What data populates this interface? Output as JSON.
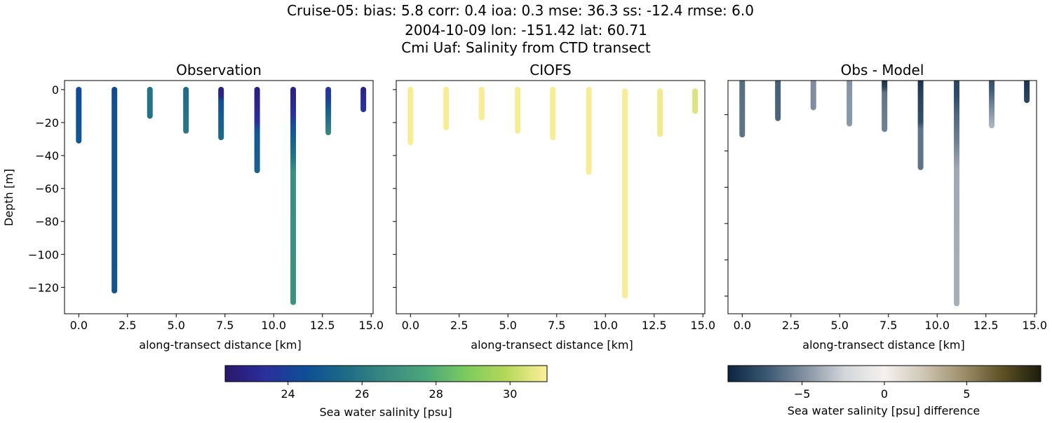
{
  "figure": {
    "title_lines": [
      "Cruise-05: bias: 5.8  corr: 0.4  ioa: 0.3  mse: 36.3  ss: -12.4  rmse: 6.0",
      "2004-10-09 lon: -151.42 lat: 60.71",
      "Cmi Uaf: Salinity from CTD transect"
    ]
  },
  "chart_data": [
    {
      "type": "scatter",
      "title": "Observation",
      "xlabel": "along-transect distance [km]",
      "ylabel": "Depth [m]",
      "xlim": [
        -0.73,
        15.1
      ],
      "ylim": [
        5.5,
        -136
      ],
      "xticks": [
        0,
        2.5,
        5,
        7.5,
        10,
        12.5,
        15
      ],
      "xtick_labels": [
        "0.0",
        "2.5",
        "5.0",
        "7.5",
        "10.0",
        "12.5",
        "15.0"
      ],
      "yticks": [
        0,
        -20,
        -40,
        -60,
        -80,
        -100,
        -120
      ],
      "ytick_labels": [
        "0",
        "−20",
        "−40",
        "−60",
        "−80",
        "−100",
        "−120"
      ],
      "colormap": "haline",
      "clim": [
        22.3,
        31.0
      ],
      "profiles": [
        {
          "x": 0.0,
          "points": [
            [
              0,
              24.3
            ],
            [
              10,
              24.5
            ],
            [
              31,
              24.8
            ]
          ]
        },
        {
          "x": 1.83,
          "points": [
            [
              0,
              24.2
            ],
            [
              10,
              24.6
            ],
            [
              122,
              24.7
            ]
          ]
        },
        {
          "x": 3.65,
          "points": [
            [
              0,
              25.8
            ],
            [
              16,
              25.8
            ]
          ]
        },
        {
          "x": 5.5,
          "points": [
            [
              0,
              25.6
            ],
            [
              25,
              26.0
            ]
          ]
        },
        {
          "x": 7.3,
          "points": [
            [
              0,
              22.8
            ],
            [
              4,
              22.9
            ],
            [
              7,
              24.5
            ],
            [
              29,
              25.5
            ]
          ]
        },
        {
          "x": 9.15,
          "points": [
            [
              0,
              22.7
            ],
            [
              8,
              22.9
            ],
            [
              20,
              23.4
            ],
            [
              25,
              24.8
            ],
            [
              49,
              25.2
            ]
          ]
        },
        {
          "x": 11.0,
          "points": [
            [
              0,
              22.8
            ],
            [
              5,
              22.9
            ],
            [
              15,
              23.5
            ],
            [
              25,
              24.8
            ],
            [
              40,
              25.8
            ],
            [
              50,
              26.8
            ],
            [
              129,
              26.9
            ]
          ]
        },
        {
          "x": 12.8,
          "points": [
            [
              0,
              23.6
            ],
            [
              5,
              23.8
            ],
            [
              12,
              25.0
            ],
            [
              26,
              26.5
            ]
          ]
        },
        {
          "x": 14.6,
          "points": [
            [
              0,
              22.8
            ],
            [
              5,
              23.2
            ],
            [
              12,
              23.5
            ]
          ]
        }
      ]
    },
    {
      "type": "scatter",
      "title": "CIOFS",
      "xlabel": "along-transect distance [km]",
      "xlim": [
        -0.73,
        15.1
      ],
      "ylim": [
        5.5,
        -136
      ],
      "xticks": [
        0,
        2.5,
        5,
        7.5,
        10,
        12.5,
        15
      ],
      "xtick_labels": [
        "0.0",
        "2.5",
        "5.0",
        "7.5",
        "10.0",
        "12.5",
        "15.0"
      ],
      "yticks": [
        0,
        -20,
        -40,
        -60,
        -80,
        -100,
        -120
      ],
      "colormap": "haline",
      "clim": [
        22.3,
        31.0
      ],
      "profiles": [
        {
          "x": 0.0,
          "points": [
            [
              0,
              30.9
            ],
            [
              32,
              30.9
            ]
          ]
        },
        {
          "x": 1.83,
          "points": [
            [
              0,
              30.9
            ],
            [
              23,
              30.9
            ]
          ]
        },
        {
          "x": 3.65,
          "points": [
            [
              0,
              30.9
            ],
            [
              17,
              30.9
            ]
          ]
        },
        {
          "x": 5.5,
          "points": [
            [
              0,
              30.9
            ],
            [
              25,
              30.9
            ]
          ]
        },
        {
          "x": 7.3,
          "points": [
            [
              0,
              30.9
            ],
            [
              29,
              30.9
            ]
          ]
        },
        {
          "x": 9.15,
          "points": [
            [
              0,
              30.9
            ],
            [
              50,
              30.9
            ]
          ]
        },
        {
          "x": 11.0,
          "points": [
            [
              1,
              30.9
            ],
            [
              125,
              30.9
            ]
          ]
        },
        {
          "x": 12.8,
          "points": [
            [
              1,
              30.8
            ],
            [
              27,
              30.8
            ]
          ]
        },
        {
          "x": 14.6,
          "points": [
            [
              1,
              30.5
            ],
            [
              13,
              30.5
            ]
          ]
        }
      ]
    },
    {
      "type": "scatter",
      "title": "Obs - Model",
      "xlabel": "along-transect distance [km]",
      "xlim": [
        -0.73,
        15.1
      ],
      "ylim": [
        -1.2,
        -129.7
      ],
      "xticks": [
        0,
        2.5,
        5,
        7.5,
        10,
        12.5,
        15
      ],
      "xtick_labels": [
        "0.0",
        "2.5",
        "5.0",
        "7.5",
        "10.0",
        "12.5",
        "15.0"
      ],
      "yticks": [
        -20,
        -40,
        -60,
        -80,
        -100,
        -120
      ],
      "colormap": "diff",
      "clim": [
        -9.5,
        9.5
      ],
      "profiles": [
        {
          "x": 0.0,
          "points": [
            [
              0,
              -6.3
            ],
            [
              31,
              -6.0
            ]
          ]
        },
        {
          "x": 1.83,
          "points": [
            [
              0,
              -6.8
            ],
            [
              22,
              -6.6
            ]
          ]
        },
        {
          "x": 3.65,
          "points": [
            [
              0,
              -5.0
            ],
            [
              16,
              -5.0
            ]
          ]
        },
        {
          "x": 5.5,
          "points": [
            [
              0,
              -4.8
            ],
            [
              25,
              -4.6
            ]
          ]
        },
        {
          "x": 7.3,
          "points": [
            [
              0,
              -9.2
            ],
            [
              5,
              -8.0
            ],
            [
              8,
              -6.0
            ],
            [
              28,
              -5.5
            ]
          ]
        },
        {
          "x": 9.15,
          "points": [
            [
              0,
              -9.0
            ],
            [
              8,
              -8.2
            ],
            [
              24,
              -7.6
            ],
            [
              28,
              -6.0
            ],
            [
              49,
              -6.0
            ]
          ]
        },
        {
          "x": 11.0,
          "points": [
            [
              0,
              -8.0
            ],
            [
              10,
              -7.6
            ],
            [
              20,
              -6.5
            ],
            [
              35,
              -5.5
            ],
            [
              50,
              -4.0
            ],
            [
              124,
              -3.8
            ]
          ]
        },
        {
          "x": 12.8,
          "points": [
            [
              0,
              -7.5
            ],
            [
              6,
              -7.0
            ],
            [
              14,
              -5.5
            ],
            [
              26,
              -3.6
            ]
          ]
        },
        {
          "x": 14.6,
          "points": [
            [
              0,
              -8.8
            ],
            [
              12,
              -8.0
            ]
          ]
        }
      ]
    }
  ],
  "colorbars": [
    {
      "label": "Sea water salinity [psu]",
      "colormap": "haline",
      "range": [
        22.3,
        31.0
      ],
      "ticks": [
        24,
        26,
        28,
        30
      ],
      "tick_labels": [
        "24",
        "26",
        "28",
        "30"
      ]
    },
    {
      "label": "Sea water salinity [psu] difference",
      "colormap": "diff",
      "range": [
        -9.5,
        9.5
      ],
      "ticks": [
        -5,
        0,
        5
      ],
      "tick_labels": [
        "−5",
        "0",
        "5"
      ]
    }
  ],
  "colormaps": {
    "haline": [
      "#2a186c",
      "#2b2f9c",
      "#0e4f96",
      "#1d6b87",
      "#3a8a80",
      "#4aa77a",
      "#7ccb5e",
      "#b6d85a",
      "#fdef9a"
    ],
    "diff": [
      "#0b2442",
      "#3b5872",
      "#8694a3",
      "#d4d7db",
      "#f4f1ef",
      "#cfc6b4",
      "#9d8f6c",
      "#5e5226",
      "#1c1d0b"
    ]
  }
}
